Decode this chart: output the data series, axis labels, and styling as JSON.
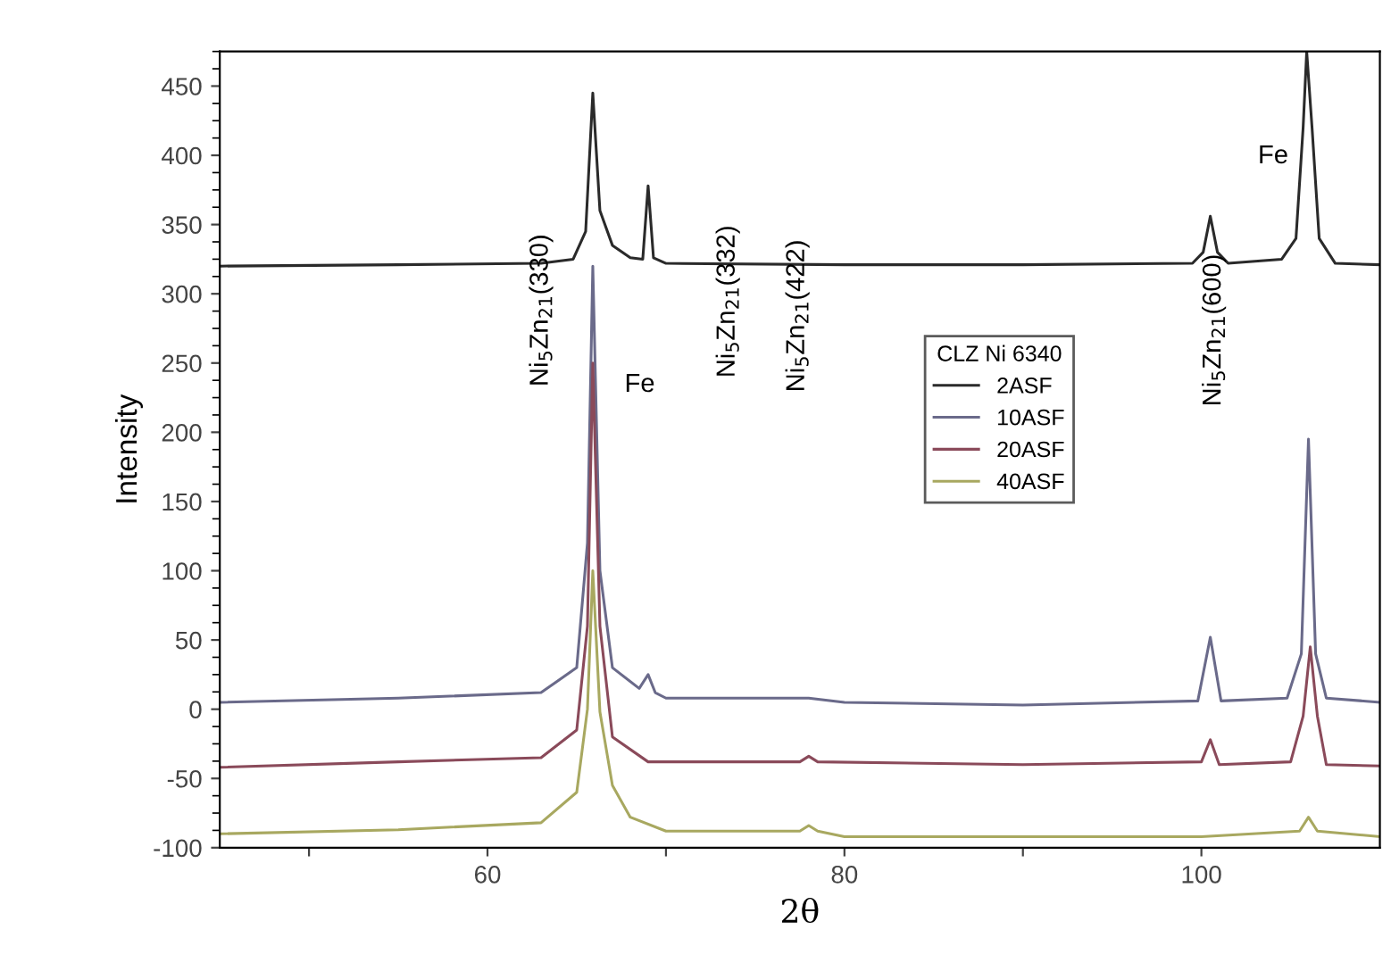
{
  "chart_data": {
    "type": "line",
    "xlabel": "2θ",
    "ylabel": "Intensity",
    "legend_title": "CLZ Ni 6340",
    "legend": "center",
    "grid": false,
    "marker": "none",
    "line_style": "solid",
    "xlim": [
      45,
      110
    ],
    "xticks": [
      {
        "value": 50,
        "label": null
      },
      60,
      {
        "value": 70,
        "label": null
      },
      80,
      {
        "value": 90,
        "label": null
      },
      100
    ],
    "ylim": [
      -100,
      475
    ],
    "yticks": [
      -100,
      -50,
      0,
      50,
      100,
      150,
      200,
      250,
      300,
      350,
      400,
      450
    ],
    "series": [
      {
        "name": "2ASF",
        "color": "#2a2a2a",
        "x": [
          45,
          55,
          63,
          64.8,
          65.5,
          65.9,
          66.3,
          67,
          68,
          68.7,
          69.0,
          69.3,
          70,
          80,
          90,
          99.5,
          100.1,
          100.5,
          100.9,
          101.5,
          104.5,
          105.3,
          105.7,
          105.9,
          106.2,
          106.6,
          107.5,
          110
        ],
        "values": [
          320,
          321,
          322,
          325,
          345,
          445,
          360,
          335,
          326,
          325,
          378,
          326,
          322,
          321,
          321,
          322,
          330,
          356,
          330,
          322,
          325,
          340,
          420,
          475,
          420,
          340,
          322,
          321
        ]
      },
      {
        "name": "10ASF",
        "color": "#6a6a8a",
        "x": [
          45,
          55,
          63,
          65,
          65.6,
          65.9,
          66.3,
          67,
          68.5,
          69,
          69.4,
          70,
          74,
          78,
          80,
          90,
          99.8,
          100.5,
          101.1,
          104.8,
          105.6,
          106.0,
          106.4,
          107,
          110
        ],
        "values": [
          5,
          8,
          12,
          30,
          120,
          320,
          100,
          30,
          15,
          25,
          12,
          8,
          8,
          8,
          5,
          3,
          6,
          52,
          6,
          8,
          40,
          195,
          40,
          8,
          5
        ]
      },
      {
        "name": "20ASF",
        "color": "#8a4a5a",
        "x": [
          45,
          55,
          63,
          65,
          65.6,
          65.9,
          66.3,
          67,
          69,
          77.5,
          78,
          78.5,
          90,
          100,
          100.5,
          101,
          105,
          105.7,
          106.1,
          106.5,
          107,
          110
        ],
        "values": [
          -42,
          -38,
          -35,
          -15,
          60,
          250,
          60,
          -20,
          -38,
          -38,
          -34,
          -38,
          -40,
          -38,
          -22,
          -40,
          -38,
          -5,
          45,
          -5,
          -40,
          -41
        ]
      },
      {
        "name": "40ASF",
        "color": "#a8a860",
        "x": [
          45,
          55,
          63,
          65,
          65.6,
          65.9,
          66.3,
          67,
          68,
          70,
          77.5,
          78,
          78.5,
          80,
          100,
          105.5,
          106,
          106.5,
          110
        ],
        "values": [
          -90,
          -87,
          -82,
          -60,
          0,
          100,
          -2,
          -55,
          -78,
          -88,
          -88,
          -84,
          -88,
          -92,
          -92,
          -88,
          -78,
          -88,
          -92
        ]
      }
    ],
    "annotations": [
      "Ni$_{5}$Zn$_{21}$(330)",
      "Fe",
      "Ni$_{5}$Zn$_{21}$(332)",
      "Ni$_{5}$Zn$_{21}$(422)",
      "Ni$_{5}$Zn$_{21}$(600)",
      "Fe"
    ]
  }
}
